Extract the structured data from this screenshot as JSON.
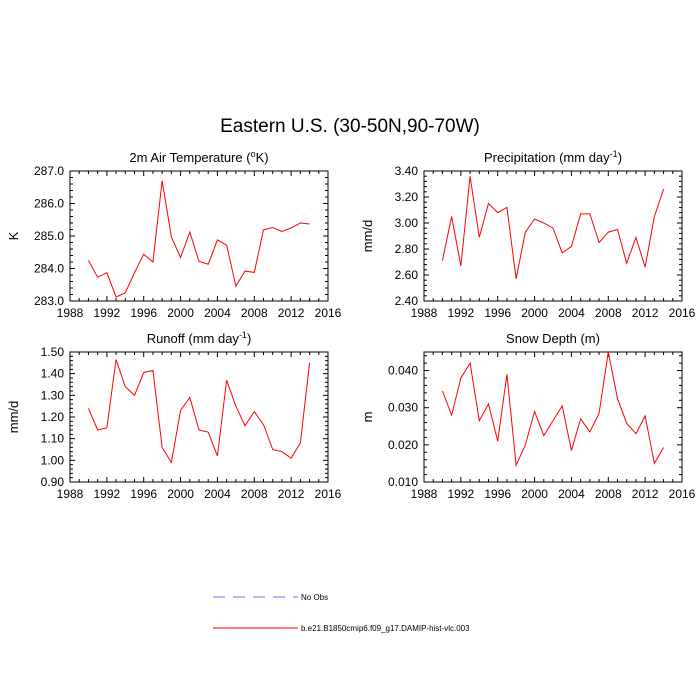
{
  "figure": {
    "title": "Eastern U.S. (30-50N,90-70W)"
  },
  "legend": [
    {
      "label": "No Obs",
      "color": "#6f6fff",
      "style": "dashed"
    },
    {
      "label": "b.e21.B1850cmip6.f09_g17.DAMIP-hist-vlc.003",
      "color": "#ff0000",
      "style": "solid"
    }
  ],
  "chart_data": [
    {
      "type": "line",
      "title": "2m Air Temperature (oK)",
      "title_parts": {
        "pre": "2m Air Temperature (",
        "sup": "o",
        "post": "K)"
      },
      "xlabel": "",
      "ylabel": "K",
      "xlim": [
        1988,
        2016
      ],
      "ylim": [
        283.0,
        287.0
      ],
      "xticks": [
        1988,
        1992,
        1996,
        2000,
        2004,
        2008,
        2012,
        2016
      ],
      "yticks": [
        "283.0",
        "284.0",
        "285.0",
        "286.0",
        "287.0"
      ],
      "series": [
        {
          "name": "b.e21.B1850cmip6.f09_g17.DAMIP-hist-vlc.003",
          "color": "#ff0000",
          "x": [
            1990,
            1991,
            1992,
            1993,
            1994,
            1995,
            1996,
            1997,
            1998,
            1999,
            2000,
            2001,
            2002,
            2003,
            2004,
            2005,
            2006,
            2007,
            2008,
            2009,
            2010,
            2011,
            2012,
            2013,
            2014
          ],
          "values": [
            284.25,
            283.73,
            283.87,
            283.12,
            283.25,
            283.87,
            284.44,
            284.2,
            286.7,
            284.97,
            284.34,
            285.12,
            284.22,
            284.13,
            284.88,
            284.72,
            283.46,
            283.92,
            283.88,
            285.19,
            285.26,
            285.14,
            285.25,
            285.4,
            285.37
          ]
        }
      ]
    },
    {
      "type": "line",
      "title": "Precipitation (mm day-1)",
      "title_parts": {
        "pre": "Precipitation (mm day",
        "sup": "-1",
        "post": ")"
      },
      "xlabel": "",
      "ylabel": "mm/d",
      "xlim": [
        1988,
        2016
      ],
      "ylim": [
        2.4,
        3.4
      ],
      "xticks": [
        1988,
        1992,
        1996,
        2000,
        2004,
        2008,
        2012,
        2016
      ],
      "yticks": [
        "2.40",
        "2.60",
        "2.80",
        "3.00",
        "3.20",
        "3.40"
      ],
      "series": [
        {
          "name": "b.e21.B1850cmip6.f09_g17.DAMIP-hist-vlc.003",
          "color": "#ff0000",
          "x": [
            1990,
            1991,
            1992,
            1993,
            1994,
            1995,
            1996,
            1997,
            1998,
            1999,
            2000,
            2001,
            2002,
            2003,
            2004,
            2005,
            2006,
            2007,
            2008,
            2009,
            2010,
            2011,
            2012,
            2013,
            2014
          ],
          "values": [
            2.71,
            3.05,
            2.67,
            3.36,
            2.89,
            3.15,
            3.08,
            3.12,
            2.57,
            2.93,
            3.03,
            3.0,
            2.96,
            2.77,
            2.82,
            3.07,
            3.07,
            2.85,
            2.93,
            2.95,
            2.69,
            2.89,
            2.66,
            3.05,
            3.26
          ]
        }
      ]
    },
    {
      "type": "line",
      "title": "Runoff (mm day-1)",
      "title_parts": {
        "pre": "Runoff (mm day",
        "sup": "-1",
        "post": ")"
      },
      "xlabel": "",
      "ylabel": "mm/d",
      "xlim": [
        1988,
        2016
      ],
      "ylim": [
        0.9,
        1.5
      ],
      "xticks": [
        1988,
        1992,
        1996,
        2000,
        2004,
        2008,
        2012,
        2016
      ],
      "yticks": [
        "0.90",
        "1.00",
        "1.10",
        "1.20",
        "1.30",
        "1.40",
        "1.50"
      ],
      "series": [
        {
          "name": "b.e21.B1850cmip6.f09_g17.DAMIP-hist-vlc.003",
          "color": "#ff0000",
          "x": [
            1990,
            1991,
            1992,
            1993,
            1994,
            1995,
            1996,
            1997,
            1998,
            1999,
            2000,
            2001,
            2002,
            2003,
            2004,
            2005,
            2006,
            2007,
            2008,
            2009,
            2010,
            2011,
            2012,
            2013,
            2014
          ],
          "values": [
            1.24,
            1.14,
            1.15,
            1.465,
            1.34,
            1.3,
            1.405,
            1.415,
            1.06,
            0.99,
            1.23,
            1.29,
            1.14,
            1.13,
            1.02,
            1.37,
            1.25,
            1.16,
            1.225,
            1.165,
            1.05,
            1.04,
            1.01,
            1.08,
            1.45
          ]
        }
      ]
    },
    {
      "type": "line",
      "title": "Snow Depth (m)",
      "title_parts": {
        "pre": "Snow Depth (m)",
        "sup": "",
        "post": ""
      },
      "xlabel": "",
      "ylabel": "m",
      "xlim": [
        1988,
        2016
      ],
      "ylim": [
        0.01,
        0.045
      ],
      "xticks": [
        1988,
        1992,
        1996,
        2000,
        2004,
        2008,
        2012,
        2016
      ],
      "yticks": [
        "0.010",
        "0.020",
        "0.030",
        "0.040"
      ],
      "ytick_values": [
        0.01,
        0.02,
        0.03,
        0.04
      ],
      "series": [
        {
          "name": "b.e21.B1850cmip6.f09_g17.DAMIP-hist-vlc.003",
          "color": "#ff0000",
          "x": [
            1990,
            1991,
            1992,
            1993,
            1994,
            1995,
            1996,
            1997,
            1998,
            1999,
            2000,
            2001,
            2002,
            2003,
            2004,
            2005,
            2006,
            2007,
            2008,
            2009,
            2010,
            2011,
            2012,
            2013,
            2014
          ],
          "values": [
            0.0345,
            0.028,
            0.038,
            0.042,
            0.0265,
            0.031,
            0.021,
            0.039,
            0.0145,
            0.02,
            0.029,
            0.0225,
            0.0265,
            0.0305,
            0.0185,
            0.027,
            0.0235,
            0.0285,
            0.045,
            0.0325,
            0.0258,
            0.023,
            0.0278,
            0.015,
            0.0193
          ]
        }
      ]
    }
  ]
}
